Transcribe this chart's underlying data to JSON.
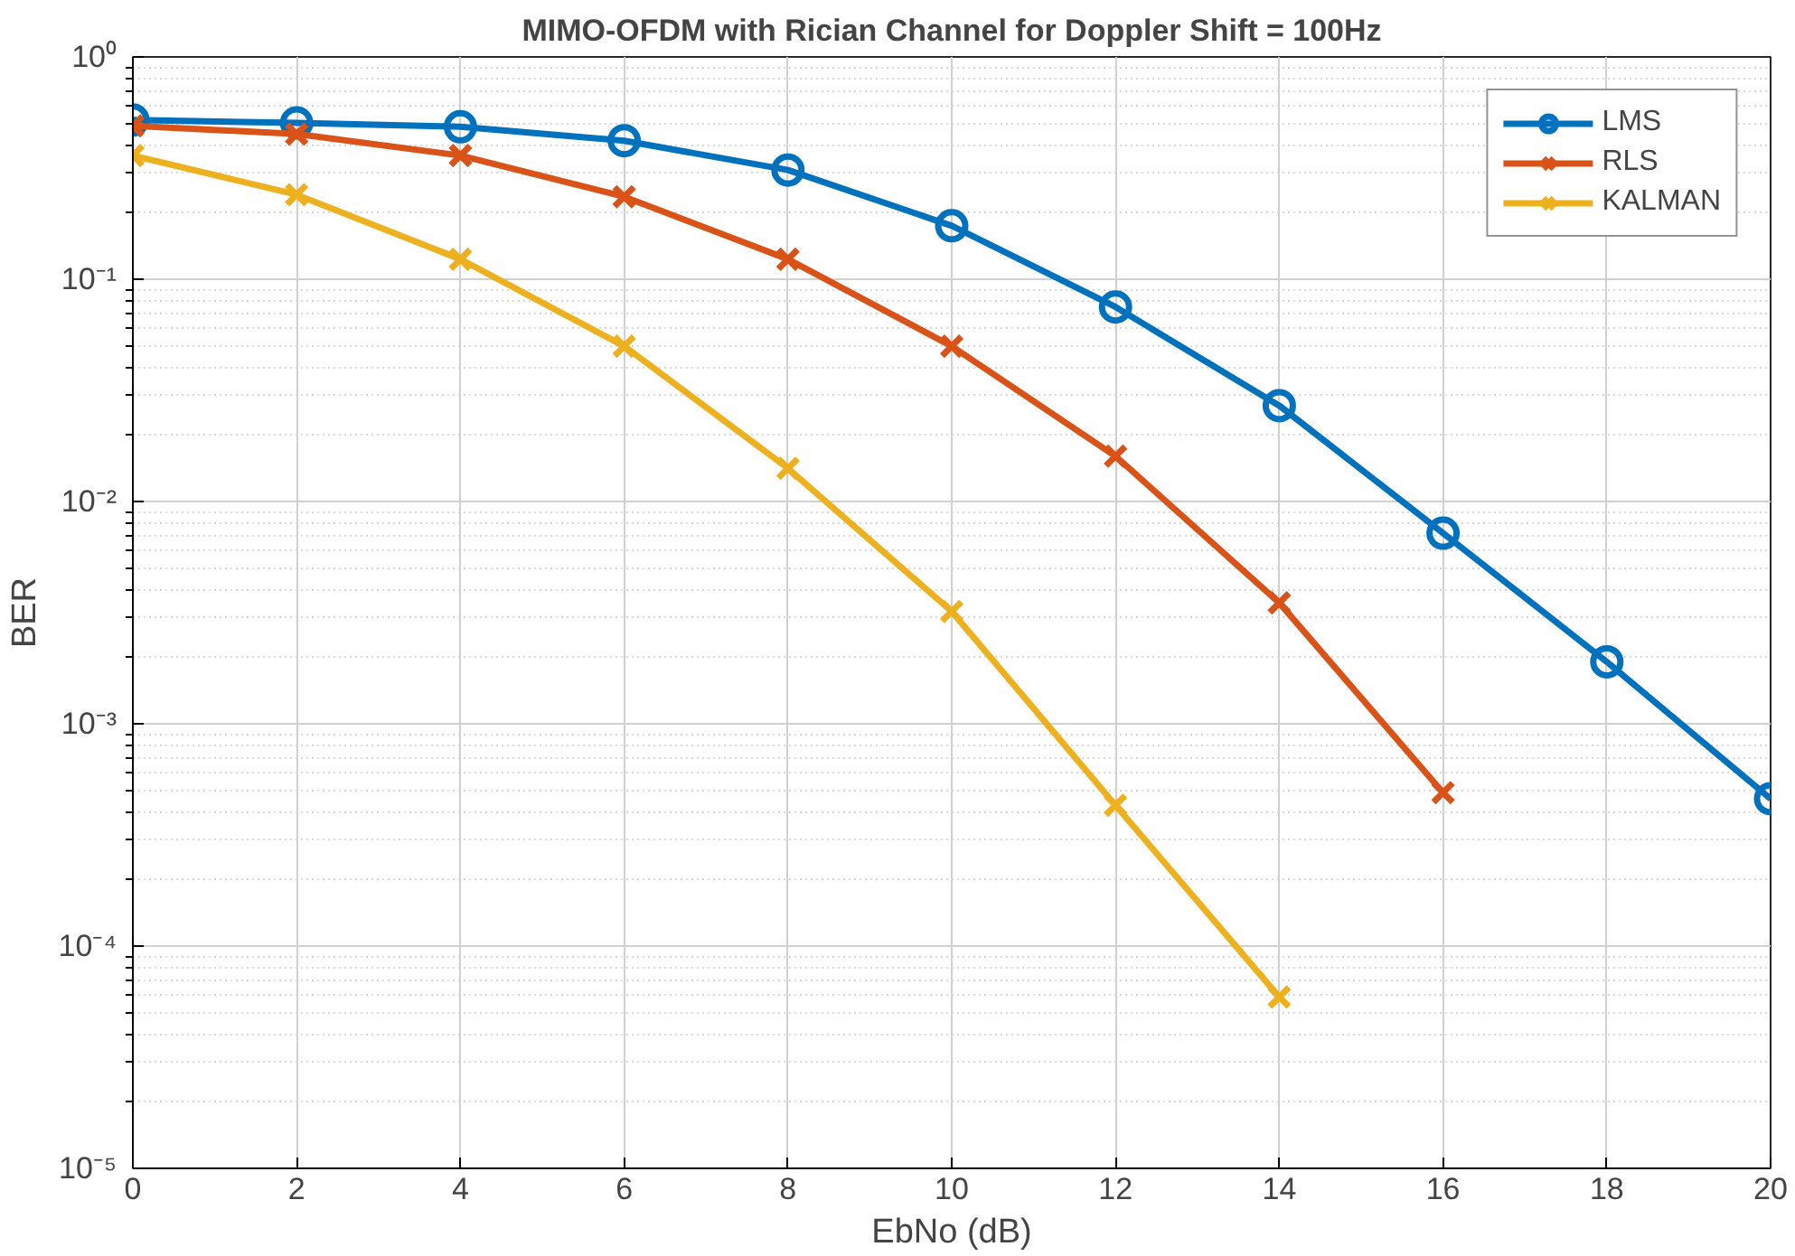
{
  "chart_data": {
    "type": "line",
    "title": "MIMO-OFDM with Rician Channel for Doppler Shift = 100Hz",
    "xlabel": "EbNo (dB)",
    "ylabel": "BER",
    "x": [
      0,
      2,
      4,
      6,
      8,
      10,
      12,
      14,
      16,
      18,
      20
    ],
    "series": [
      {
        "name": "LMS",
        "color": "#0072bd",
        "marker": "circle",
        "values": [
          0.52,
          0.505,
          0.485,
          0.42,
          0.31,
          0.174,
          0.075,
          0.027,
          0.0072,
          0.0019,
          0.00046
        ]
      },
      {
        "name": "RLS",
        "color": "#d95319",
        "marker": "cross",
        "values": [
          0.49,
          0.45,
          0.36,
          0.235,
          0.123,
          0.05,
          0.016,
          0.0035,
          0.00049,
          null,
          null
        ]
      },
      {
        "name": "KALMAN",
        "color": "#edb120",
        "marker": "cross",
        "values": [
          0.36,
          0.24,
          0.123,
          0.05,
          0.0141,
          0.0032,
          0.00043,
          5.9e-05,
          null,
          null,
          null
        ]
      }
    ],
    "xlim": [
      0,
      20
    ],
    "xticks": [
      0,
      2,
      4,
      6,
      8,
      10,
      12,
      14,
      16,
      18,
      20
    ],
    "ylim": [
      1e-05,
      1
    ],
    "yticks": [
      {
        "value": 1e-05,
        "label": "10⁻⁵"
      },
      {
        "value": 0.0001,
        "label": "10⁻⁴"
      },
      {
        "value": 0.001,
        "label": "10⁻³"
      },
      {
        "value": 0.01,
        "label": "10⁻²"
      },
      {
        "value": 0.1,
        "label": "10⁻¹"
      },
      {
        "value": 1,
        "label": "10⁰"
      }
    ],
    "log": true,
    "grid": true,
    "legend": "top right",
    "line_style": "solid"
  }
}
